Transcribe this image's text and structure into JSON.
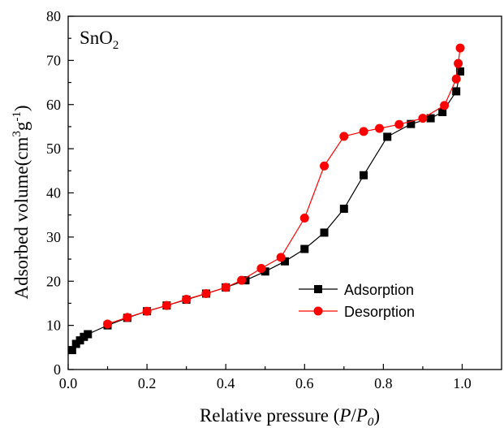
{
  "chart_data": {
    "type": "line",
    "annotation": {
      "base": "SnO",
      "sub": "2"
    },
    "xlabel": {
      "prefix": "Relative pressure (",
      "p": "P",
      "slash": "/",
      "p0": "P",
      "p0_sub": "0",
      "suffix": ")"
    },
    "ylabel": {
      "prefix": "Adsorbed volume(cm",
      "sup1": "3",
      "mid": "g",
      "sup2": "-1",
      "suffix": ")"
    },
    "xlim": [
      0.0,
      1.1
    ],
    "ylim": [
      0,
      80
    ],
    "xticks": [
      "0.0",
      "0.2",
      "0.4",
      "0.6",
      "0.8",
      "1.0"
    ],
    "yticks": [
      "0",
      "10",
      "20",
      "30",
      "40",
      "50",
      "60",
      "70",
      "80"
    ],
    "grid": false,
    "legend_position": "center-right",
    "series": [
      {
        "name": "Adsorption",
        "color": "#000000",
        "marker": "square",
        "x": [
          0.01,
          0.02,
          0.03,
          0.04,
          0.05,
          0.1,
          0.15,
          0.2,
          0.25,
          0.3,
          0.35,
          0.4,
          0.45,
          0.5,
          0.55,
          0.6,
          0.65,
          0.7,
          0.75,
          0.81,
          0.87,
          0.92,
          0.95,
          0.985,
          0.995
        ],
        "y": [
          4.4,
          5.8,
          6.6,
          7.4,
          8.0,
          10.0,
          11.7,
          13.2,
          14.5,
          15.8,
          17.2,
          18.6,
          20.2,
          22.2,
          24.5,
          27.3,
          31.0,
          36.4,
          44.0,
          52.7,
          55.6,
          56.9,
          58.3,
          63.0,
          67.5
        ]
      },
      {
        "name": "Desorption",
        "color": "#ff0000",
        "marker": "circle",
        "x": [
          0.995,
          0.99,
          0.985,
          0.955,
          0.9,
          0.84,
          0.79,
          0.75,
          0.7,
          0.65,
          0.6,
          0.54,
          0.49,
          0.44,
          0.4,
          0.35,
          0.3,
          0.25,
          0.2,
          0.15,
          0.1
        ],
        "y": [
          72.8,
          69.3,
          65.8,
          59.8,
          56.9,
          55.5,
          54.6,
          53.9,
          52.8,
          46.1,
          34.3,
          25.4,
          22.9,
          20.2,
          18.6,
          17.2,
          15.9,
          14.5,
          13.2,
          11.8,
          10.3
        ]
      }
    ]
  }
}
